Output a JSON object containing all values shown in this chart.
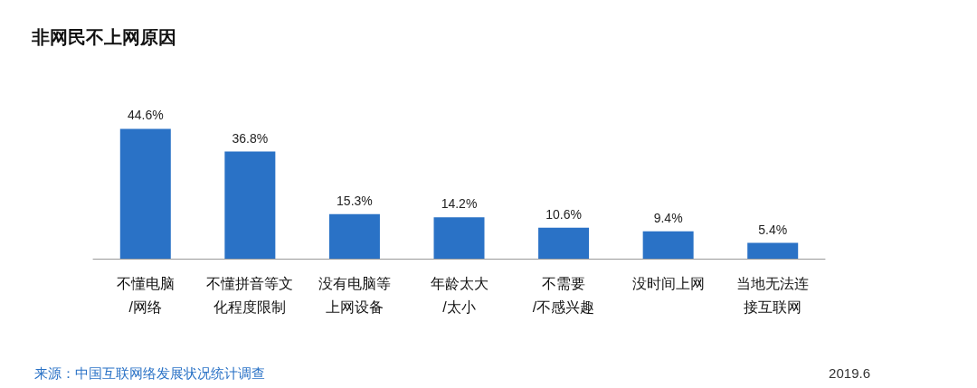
{
  "chart_data": {
    "type": "bar",
    "title": "非网民不上网原因",
    "categories": [
      "不懂电脑/网络",
      "不懂拼音等文化程度限制",
      "没有电脑等上网设备",
      "年龄太大/太小",
      "不需要/不感兴趣",
      "没时间上网",
      "当地无法连接互联网"
    ],
    "values": [
      44.6,
      36.8,
      15.3,
      14.2,
      10.6,
      9.4,
      5.4
    ],
    "value_labels": [
      "44.6%",
      "36.8%",
      "15.3%",
      "14.2%",
      "10.6%",
      "9.4%",
      "5.4%"
    ],
    "color": "#2a72c6",
    "annotations": [
      "来源：中国互联网络发展状况统计调查",
      "2019.6"
    ]
  }
}
